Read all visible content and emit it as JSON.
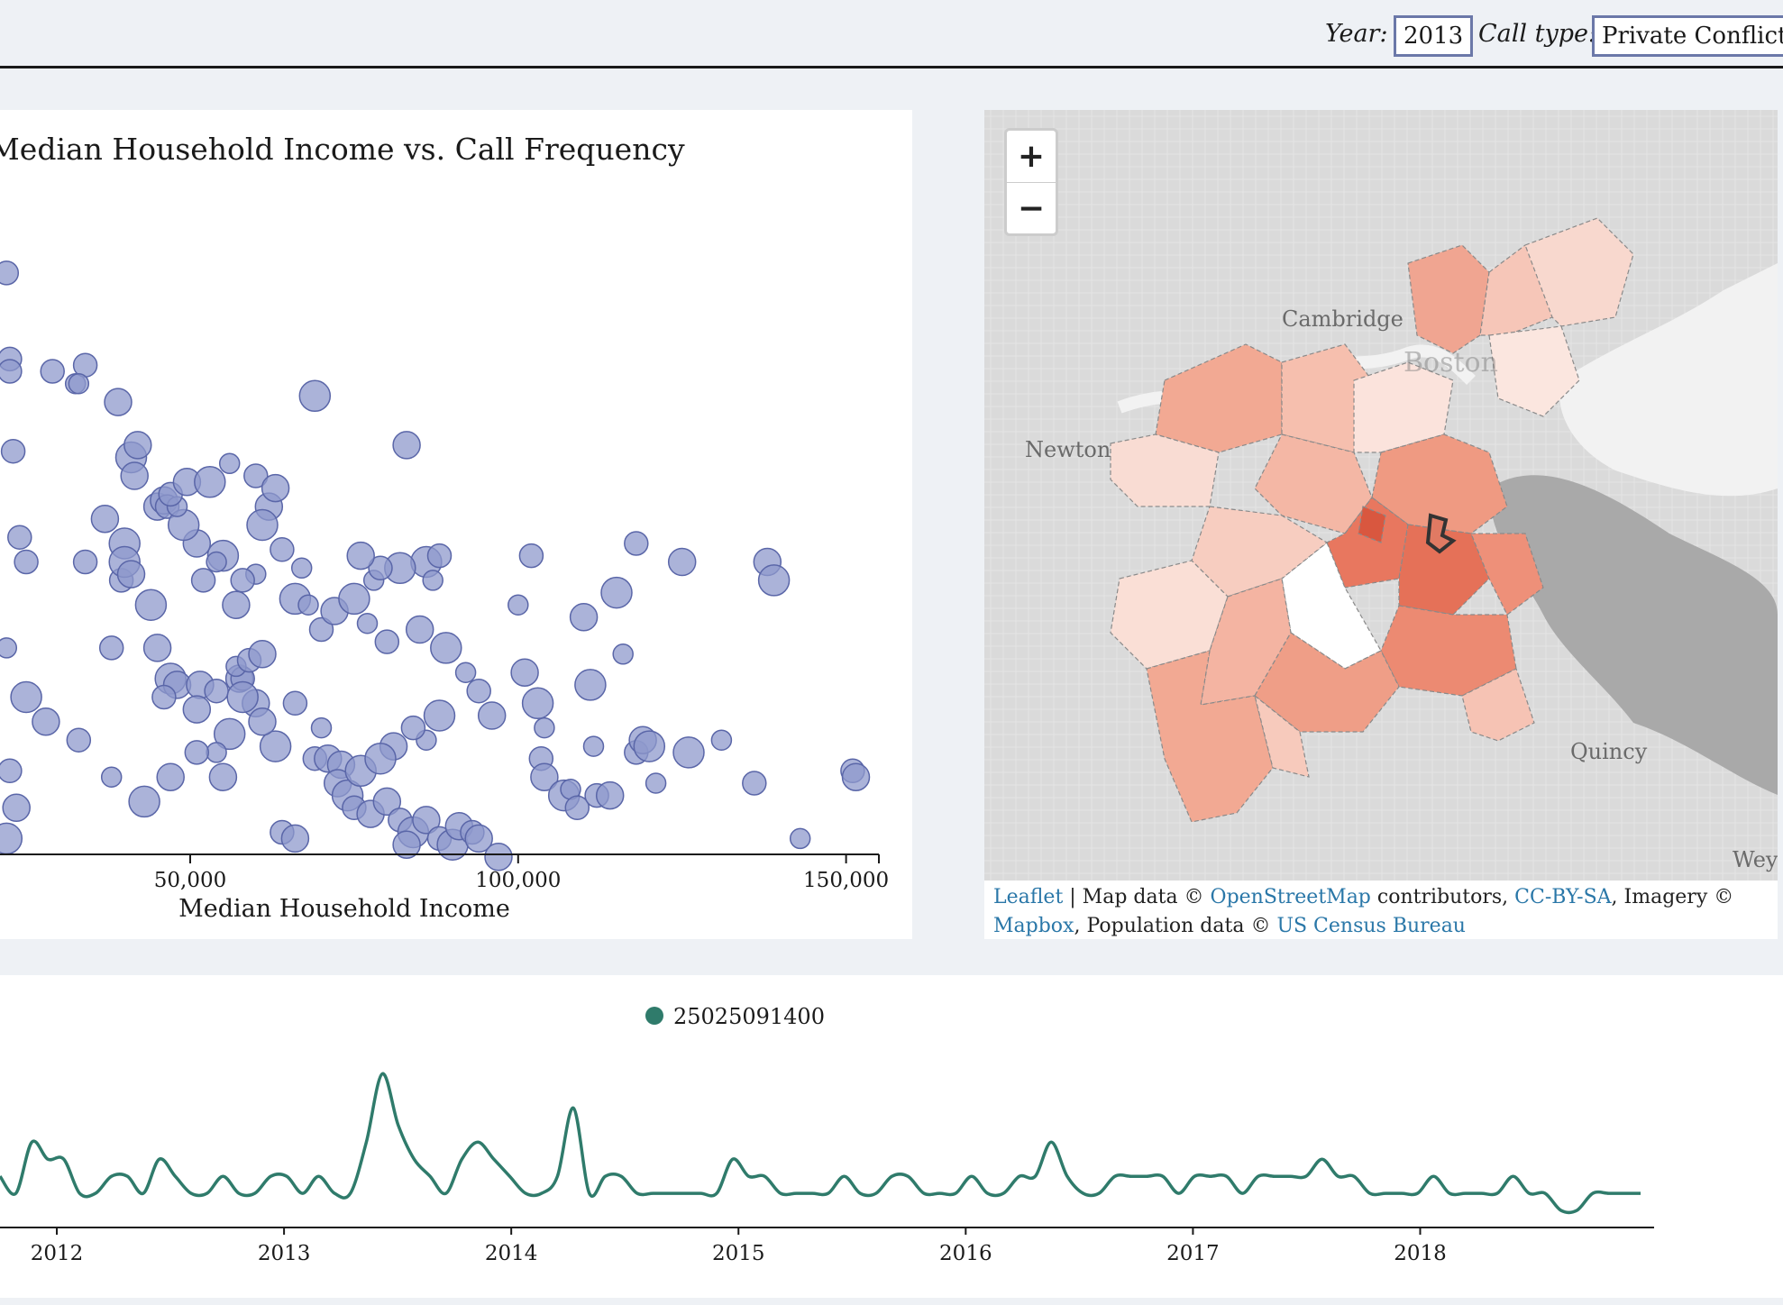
{
  "controls": {
    "year_label": "Year:",
    "year_value": "2013",
    "calltype_label": "Call type:",
    "calltype_value": "Private Conflict"
  },
  "scatter": {
    "chart_data": {
      "type": "scatter",
      "title": "Median Household Income vs. Call Frequency",
      "xlabel": "Median Household Income",
      "ylabel": "",
      "xlim": [
        21000,
        155000
      ],
      "x_ticks": [
        50000,
        100000,
        150000
      ],
      "x_tick_labels": [
        "50,000",
        "100,000",
        "150,000"
      ],
      "point_color": "#8f99cc",
      "point_stroke": "#5a66a8",
      "points": [
        {
          "x": 22000,
          "y": 0.94,
          "r": 1
        },
        {
          "x": 22500,
          "y": 0.8,
          "r": 1
        },
        {
          "x": 22500,
          "y": 0.78,
          "r": 1
        },
        {
          "x": 29000,
          "y": 0.78,
          "r": 1
        },
        {
          "x": 32500,
          "y": 0.76,
          "r": 0
        },
        {
          "x": 34000,
          "y": 0.79,
          "r": 1
        },
        {
          "x": 33000,
          "y": 0.76,
          "r": 0
        },
        {
          "x": 39000,
          "y": 0.73,
          "r": 2
        },
        {
          "x": 41000,
          "y": 0.64,
          "r": 3
        },
        {
          "x": 42000,
          "y": 0.66,
          "r": 2
        },
        {
          "x": 41500,
          "y": 0.61,
          "r": 2
        },
        {
          "x": 45000,
          "y": 0.56,
          "r": 2
        },
        {
          "x": 46000,
          "y": 0.57,
          "r": 2
        },
        {
          "x": 46500,
          "y": 0.56,
          "r": 1
        },
        {
          "x": 37000,
          "y": 0.54,
          "r": 2
        },
        {
          "x": 40000,
          "y": 0.5,
          "r": 3
        },
        {
          "x": 39500,
          "y": 0.44,
          "r": 1
        },
        {
          "x": 40000,
          "y": 0.47,
          "r": 3
        },
        {
          "x": 41000,
          "y": 0.45,
          "r": 2
        },
        {
          "x": 44000,
          "y": 0.4,
          "r": 3
        },
        {
          "x": 38000,
          "y": 0.33,
          "r": 1
        },
        {
          "x": 34000,
          "y": 0.47,
          "r": 1
        },
        {
          "x": 24000,
          "y": 0.51,
          "r": 1
        },
        {
          "x": 23000,
          "y": 0.65,
          "r": 1
        },
        {
          "x": 25000,
          "y": 0.47,
          "r": 1
        },
        {
          "x": 45000,
          "y": 0.33,
          "r": 2
        },
        {
          "x": 47000,
          "y": 0.28,
          "r": 3
        },
        {
          "x": 48000,
          "y": 0.27,
          "r": 2
        },
        {
          "x": 46000,
          "y": 0.25,
          "r": 1
        },
        {
          "x": 51500,
          "y": 0.27,
          "r": 2
        },
        {
          "x": 51000,
          "y": 0.23,
          "r": 2
        },
        {
          "x": 54000,
          "y": 0.26,
          "r": 1
        },
        {
          "x": 57500,
          "y": 0.28,
          "r": 2
        },
        {
          "x": 56000,
          "y": 0.19,
          "r": 3
        },
        {
          "x": 58000,
          "y": 0.28,
          "r": 1
        },
        {
          "x": 60000,
          "y": 0.24,
          "r": 2
        },
        {
          "x": 63000,
          "y": 0.17,
          "r": 3
        },
        {
          "x": 55000,
          "y": 0.12,
          "r": 2
        },
        {
          "x": 64000,
          "y": 0.03,
          "r": 1
        },
        {
          "x": 66000,
          "y": 0.02,
          "r": 2
        },
        {
          "x": 69000,
          "y": 0.15,
          "r": 1
        },
        {
          "x": 71000,
          "y": 0.15,
          "r": 2
        },
        {
          "x": 73000,
          "y": 0.14,
          "r": 2
        },
        {
          "x": 72500,
          "y": 0.11,
          "r": 2
        },
        {
          "x": 74000,
          "y": 0.09,
          "r": 3
        },
        {
          "x": 76000,
          "y": 0.13,
          "r": 3
        },
        {
          "x": 75000,
          "y": 0.07,
          "r": 1
        },
        {
          "x": 77500,
          "y": 0.06,
          "r": 2
        },
        {
          "x": 80000,
          "y": 0.08,
          "r": 2
        },
        {
          "x": 82000,
          "y": 0.05,
          "r": 1
        },
        {
          "x": 84000,
          "y": 0.03,
          "r": 3
        },
        {
          "x": 83000,
          "y": 0.01,
          "r": 2
        },
        {
          "x": 86000,
          "y": 0.05,
          "r": 2
        },
        {
          "x": 88000,
          "y": 0.02,
          "r": 1
        },
        {
          "x": 90000,
          "y": 0.01,
          "r": 3
        },
        {
          "x": 91000,
          "y": 0.04,
          "r": 2
        },
        {
          "x": 93000,
          "y": 0.03,
          "r": 1
        },
        {
          "x": 94000,
          "y": 0.02,
          "r": 2
        },
        {
          "x": 97000,
          "y": -0.01,
          "r": 2
        }
      ],
      "values_note": ""
    }
  },
  "map": {
    "zoom_in": "+",
    "zoom_out": "−",
    "labels": [
      "Cambridge",
      "Boston",
      "Newton",
      "Quincy",
      "Weym"
    ],
    "attribution": {
      "leaflet": "Leaflet",
      "sep": " | Map data © ",
      "osm": "OpenStreetMap",
      "contrib": " contributors, ",
      "ccbysa": "CC-BY-SA",
      "imagery": ", Imagery © ",
      "mapbox": "Mapbox",
      "pop": ", Population data © ",
      "census": "US Census Bureau"
    },
    "colors": {
      "land": "#d8d8d8",
      "water": "#f4f4f4",
      "choro_dark": "#d9573f",
      "choro_light": "#fbe3dc"
    }
  },
  "timeline": {
    "chart_data": {
      "type": "line",
      "series": [
        {
          "name": "25025091400",
          "color": "#2f7b6b",
          "values": [
            3,
            2,
            5,
            4,
            4,
            2,
            2,
            3,
            3,
            2,
            4,
            3,
            2,
            2,
            3,
            2,
            2,
            3,
            3,
            2,
            3,
            2,
            2,
            5,
            9,
            6,
            4,
            3,
            2,
            4,
            5,
            4,
            3,
            2,
            2,
            3,
            7,
            2,
            3,
            3,
            2,
            2,
            2,
            2,
            2,
            2,
            4,
            3,
            3,
            2,
            2,
            2,
            2,
            3,
            2,
            2,
            3,
            3,
            2,
            2,
            2,
            3,
            2,
            2,
            3,
            3,
            5,
            3,
            2,
            2,
            3,
            3,
            3,
            3,
            2,
            3,
            3,
            3,
            2,
            3,
            3,
            3,
            3,
            4,
            3,
            3,
            2,
            2,
            2,
            2,
            3,
            2,
            2,
            2,
            2,
            3,
            2,
            2,
            1,
            1,
            2,
            2,
            2,
            2
          ]
        }
      ],
      "x_tick_labels": [
        "2012",
        "2013",
        "2014",
        "2015",
        "2016",
        "2017",
        "2018"
      ],
      "x_ticks": [
        2012,
        2013,
        2014,
        2015,
        2016,
        2017,
        2018
      ],
      "x_start": 2011.75,
      "x_end": 2018.97
    }
  }
}
